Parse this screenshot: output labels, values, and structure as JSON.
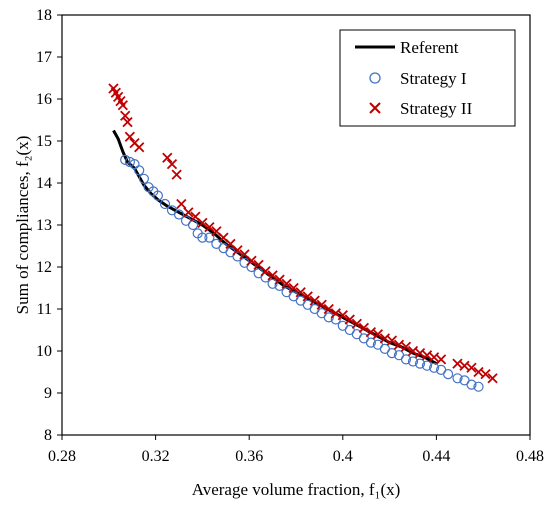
{
  "chart_data": {
    "type": "scatter",
    "title": "",
    "xlabel": "Average volume fraction, f₁(x)",
    "ylabel": "Sum of compliances, f₂(x)",
    "xlim": [
      0.28,
      0.48
    ],
    "ylim": [
      8,
      18
    ],
    "xticks": [
      0.28,
      0.32,
      0.36,
      0.4,
      0.44,
      0.48
    ],
    "xtick_labels": [
      "0.28",
      "0.32",
      "0.36",
      "0.4",
      "0.44",
      "0.48"
    ],
    "yticks": [
      8,
      9,
      10,
      11,
      12,
      13,
      14,
      15,
      16,
      17,
      18
    ],
    "ytick_labels": [
      "8",
      "9",
      "10",
      "11",
      "12",
      "13",
      "14",
      "15",
      "16",
      "17",
      "18"
    ],
    "grid": false,
    "legend_position": "top-right",
    "series": [
      {
        "name": "Referent",
        "kind": "line",
        "color": "#000000",
        "points": [
          [
            0.302,
            15.25
          ],
          [
            0.304,
            15.05
          ],
          [
            0.306,
            14.75
          ],
          [
            0.308,
            14.5
          ],
          [
            0.311,
            14.35
          ],
          [
            0.313,
            14.15
          ],
          [
            0.315,
            13.95
          ],
          [
            0.318,
            13.75
          ],
          [
            0.321,
            13.6
          ],
          [
            0.325,
            13.45
          ],
          [
            0.33,
            13.3
          ],
          [
            0.335,
            13.15
          ],
          [
            0.34,
            13.0
          ],
          [
            0.345,
            12.8
          ],
          [
            0.35,
            12.55
          ],
          [
            0.355,
            12.35
          ],
          [
            0.36,
            12.15
          ],
          [
            0.365,
            11.95
          ],
          [
            0.37,
            11.75
          ],
          [
            0.375,
            11.55
          ],
          [
            0.38,
            11.4
          ],
          [
            0.385,
            11.25
          ],
          [
            0.39,
            11.1
          ],
          [
            0.395,
            10.95
          ],
          [
            0.4,
            10.8
          ],
          [
            0.405,
            10.65
          ],
          [
            0.41,
            10.5
          ],
          [
            0.415,
            10.35
          ],
          [
            0.42,
            10.2
          ],
          [
            0.425,
            10.1
          ],
          [
            0.43,
            9.95
          ],
          [
            0.435,
            9.85
          ],
          [
            0.44,
            9.7
          ]
        ]
      },
      {
        "name": "Strategy I",
        "kind": "marker-circle",
        "color": "#4472C4",
        "points": [
          [
            0.307,
            14.55
          ],
          [
            0.309,
            14.5
          ],
          [
            0.311,
            14.45
          ],
          [
            0.313,
            14.3
          ],
          [
            0.315,
            14.1
          ],
          [
            0.317,
            13.9
          ],
          [
            0.319,
            13.8
          ],
          [
            0.321,
            13.7
          ],
          [
            0.324,
            13.5
          ],
          [
            0.327,
            13.35
          ],
          [
            0.33,
            13.25
          ],
          [
            0.333,
            13.1
          ],
          [
            0.336,
            13.0
          ],
          [
            0.338,
            12.8
          ],
          [
            0.34,
            12.7
          ],
          [
            0.343,
            12.7
          ],
          [
            0.346,
            12.55
          ],
          [
            0.349,
            12.45
          ],
          [
            0.352,
            12.35
          ],
          [
            0.355,
            12.25
          ],
          [
            0.358,
            12.1
          ],
          [
            0.361,
            12.0
          ],
          [
            0.364,
            11.85
          ],
          [
            0.367,
            11.75
          ],
          [
            0.37,
            11.6
          ],
          [
            0.373,
            11.55
          ],
          [
            0.376,
            11.4
          ],
          [
            0.379,
            11.3
          ],
          [
            0.382,
            11.2
          ],
          [
            0.385,
            11.1
          ],
          [
            0.388,
            11.0
          ],
          [
            0.391,
            10.9
          ],
          [
            0.394,
            10.8
          ],
          [
            0.397,
            10.75
          ],
          [
            0.4,
            10.6
          ],
          [
            0.403,
            10.5
          ],
          [
            0.406,
            10.4
          ],
          [
            0.409,
            10.3
          ],
          [
            0.412,
            10.2
          ],
          [
            0.415,
            10.15
          ],
          [
            0.418,
            10.05
          ],
          [
            0.421,
            9.95
          ],
          [
            0.424,
            9.9
          ],
          [
            0.427,
            9.8
          ],
          [
            0.43,
            9.75
          ],
          [
            0.433,
            9.7
          ],
          [
            0.436,
            9.65
          ],
          [
            0.439,
            9.6
          ],
          [
            0.442,
            9.55
          ],
          [
            0.445,
            9.45
          ],
          [
            0.449,
            9.35
          ],
          [
            0.452,
            9.3
          ],
          [
            0.455,
            9.2
          ],
          [
            0.458,
            9.15
          ]
        ]
      },
      {
        "name": "Strategy II",
        "kind": "marker-x",
        "color": "#C00000",
        "points": [
          [
            0.302,
            16.25
          ],
          [
            0.303,
            16.15
          ],
          [
            0.304,
            16.05
          ],
          [
            0.305,
            15.95
          ],
          [
            0.306,
            15.85
          ],
          [
            0.307,
            15.6
          ],
          [
            0.308,
            15.45
          ],
          [
            0.309,
            15.1
          ],
          [
            0.311,
            14.95
          ],
          [
            0.313,
            14.85
          ],
          [
            0.325,
            14.6
          ],
          [
            0.327,
            14.45
          ],
          [
            0.329,
            14.2
          ],
          [
            0.331,
            13.5
          ],
          [
            0.334,
            13.3
          ],
          [
            0.337,
            13.2
          ],
          [
            0.34,
            13.05
          ],
          [
            0.343,
            12.95
          ],
          [
            0.346,
            12.85
          ],
          [
            0.349,
            12.7
          ],
          [
            0.352,
            12.55
          ],
          [
            0.355,
            12.4
          ],
          [
            0.358,
            12.3
          ],
          [
            0.361,
            12.15
          ],
          [
            0.364,
            12.05
          ],
          [
            0.367,
            11.9
          ],
          [
            0.37,
            11.8
          ],
          [
            0.373,
            11.7
          ],
          [
            0.376,
            11.6
          ],
          [
            0.379,
            11.5
          ],
          [
            0.382,
            11.4
          ],
          [
            0.385,
            11.3
          ],
          [
            0.388,
            11.2
          ],
          [
            0.391,
            11.1
          ],
          [
            0.394,
            11.0
          ],
          [
            0.397,
            10.9
          ],
          [
            0.4,
            10.85
          ],
          [
            0.403,
            10.75
          ],
          [
            0.406,
            10.65
          ],
          [
            0.409,
            10.55
          ],
          [
            0.412,
            10.45
          ],
          [
            0.415,
            10.4
          ],
          [
            0.418,
            10.3
          ],
          [
            0.421,
            10.25
          ],
          [
            0.424,
            10.15
          ],
          [
            0.427,
            10.1
          ],
          [
            0.43,
            10.0
          ],
          [
            0.433,
            9.95
          ],
          [
            0.436,
            9.9
          ],
          [
            0.439,
            9.85
          ],
          [
            0.442,
            9.8
          ],
          [
            0.449,
            9.7
          ],
          [
            0.452,
            9.65
          ],
          [
            0.455,
            9.6
          ],
          [
            0.458,
            9.5
          ],
          [
            0.461,
            9.45
          ],
          [
            0.464,
            9.35
          ]
        ]
      }
    ]
  }
}
